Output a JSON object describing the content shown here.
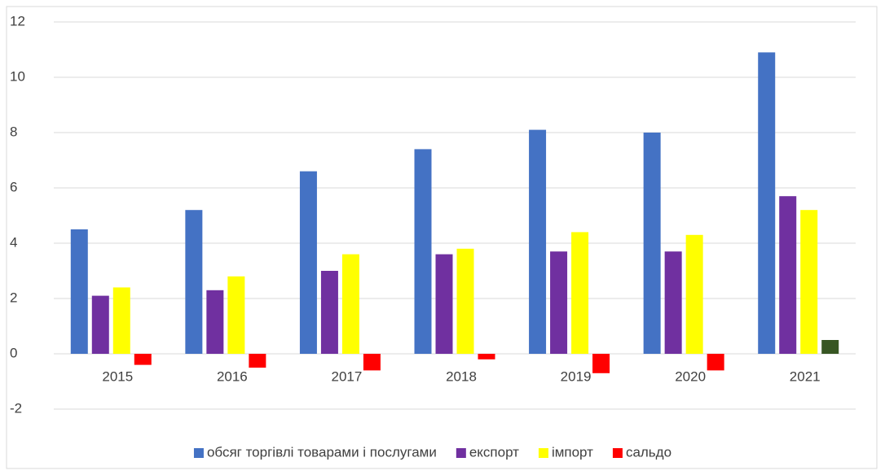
{
  "chart_data": {
    "type": "bar",
    "categories": [
      "2015",
      "2016",
      "2017",
      "2018",
      "2019",
      "2020",
      "2021"
    ],
    "series": [
      {
        "name": "обсяг торгівлі товарами і послугами",
        "color": "#4472c4",
        "values": [
          4.5,
          5.2,
          6.6,
          7.4,
          8.1,
          8.0,
          10.9
        ]
      },
      {
        "name": "експорт",
        "color": "#7030a0",
        "values": [
          2.1,
          2.3,
          3.0,
          3.6,
          3.7,
          3.7,
          5.7
        ]
      },
      {
        "name": "імпорт",
        "color": "#ffff00",
        "values": [
          2.4,
          2.8,
          3.6,
          3.8,
          4.4,
          4.3,
          5.2
        ]
      },
      {
        "name": "сальдо",
        "color": "#ff0000",
        "values": [
          -0.4,
          -0.5,
          -0.6,
          -0.2,
          -0.7,
          -0.6,
          0.5
        ],
        "point_colors": [
          "#ff0000",
          "#ff0000",
          "#ff0000",
          "#ff0000",
          "#ff0000",
          "#ff0000",
          "#375623"
        ]
      }
    ],
    "ylim": [
      -2,
      12
    ],
    "yticks": [
      -2,
      0,
      2,
      4,
      6,
      8,
      10,
      12
    ],
    "grid": true,
    "legend": "bottom"
  }
}
